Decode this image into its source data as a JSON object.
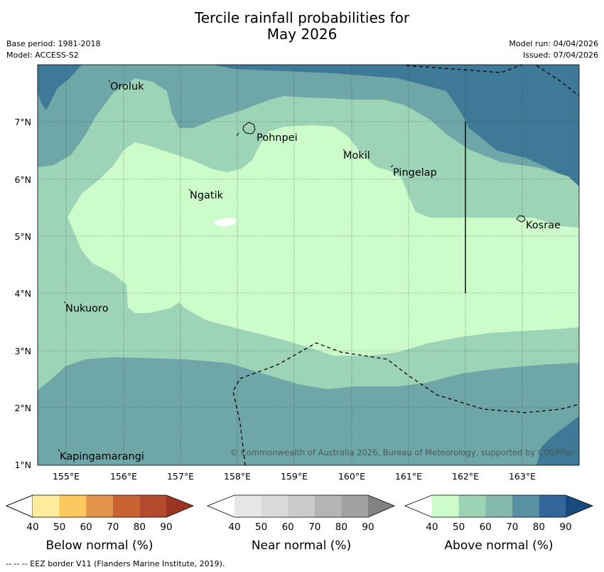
{
  "header": {
    "title_line1": "Tercile rainfall probabilities for",
    "title_line2": "May 2026",
    "base_period": "Base period: 1981-2018",
    "model": "Model: ACCESS-S2",
    "model_run": "Model run: 04/04/2026",
    "issued": "Issued: 07/04/2026"
  },
  "map": {
    "lat_labels": [
      "7°N",
      "6°N",
      "5°N",
      "4°N",
      "3°N",
      "2°N",
      "1°N"
    ],
    "lon_labels": [
      "155°E",
      "156°E",
      "157°E",
      "158°E",
      "159°E",
      "160°E",
      "161°E",
      "162°E",
      "163°E"
    ],
    "places": [
      "Oroluk",
      "Pohnpei",
      "Mokil",
      "Pingelap",
      "Ngatik",
      "Kosrae",
      "Nukuoro",
      "Kapingamarangi"
    ],
    "credit": "© Commonwealth of Australia 2026, Bureau of Meteorology, supported by COSPPac"
  },
  "colorbars": [
    {
      "title": "Below normal (%)",
      "ticks": [
        "40",
        "50",
        "60",
        "70",
        "80",
        "90"
      ],
      "colors": [
        "#ffffff",
        "#ffeb9c",
        "#fec861",
        "#e1944a",
        "#cb6231",
        "#b24b2c",
        "#9c3422"
      ]
    },
    {
      "title": "Near normal (%)",
      "ticks": [
        "40",
        "50",
        "60",
        "70",
        "80",
        "90"
      ],
      "colors": [
        "#ffffff",
        "#e6e6e6",
        "#d9d9d9",
        "#cbcbcb",
        "#b4b4b4",
        "#a1a1a1",
        "#828282"
      ]
    },
    {
      "title": "Above normal (%)",
      "ticks": [
        "40",
        "50",
        "60",
        "70",
        "80",
        "90"
      ],
      "colors": [
        "#ffffff",
        "#ccfcca",
        "#9dd3b5",
        "#84b9ac",
        "#5891a4",
        "#33669a",
        "#184a80"
      ]
    }
  ],
  "footer": "--  --  -- EEZ border V11 (Flanders Marine Institute, 2019)."
}
